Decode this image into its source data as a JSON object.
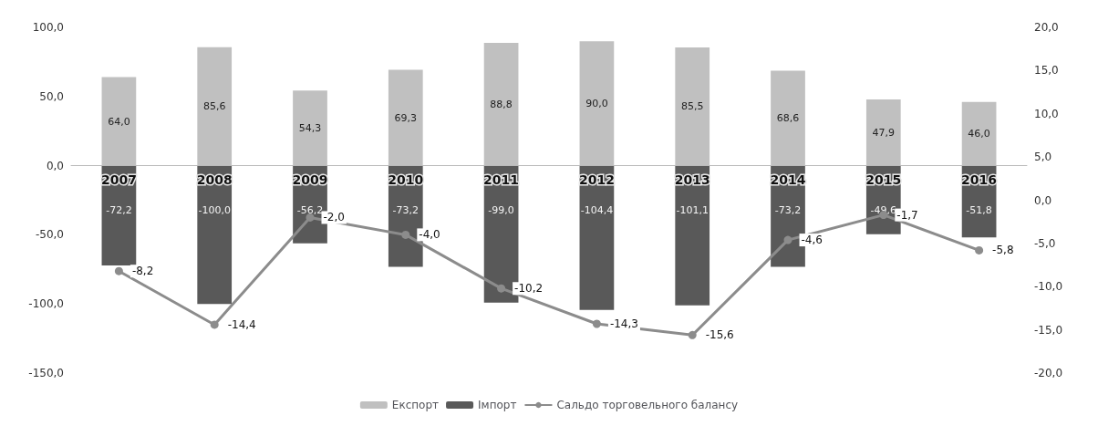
{
  "chart_data": {
    "type": "bar",
    "stacked": true,
    "categories": [
      "2007",
      "2008",
      "2009",
      "2010",
      "2011",
      "2012",
      "2013",
      "2014",
      "2015",
      "2016"
    ],
    "series": [
      {
        "name": "Експорт",
        "type": "bar",
        "color": "#c0c0c0",
        "values": [
          64.0,
          85.6,
          54.3,
          69.3,
          88.8,
          90.0,
          85.5,
          68.6,
          47.9,
          46.0
        ],
        "value_labels": [
          "64,0",
          "85,6",
          "54,3",
          "69,3",
          "88,8",
          "90,0",
          "85,5",
          "68,6",
          "47,9",
          "46,0"
        ]
      },
      {
        "name": "Імпорт",
        "type": "bar",
        "color": "#595959",
        "values": [
          -72.2,
          -100.0,
          -56.2,
          -73.2,
          -99.0,
          -104.4,
          -101.1,
          -73.2,
          -49.6,
          -51.8
        ],
        "value_labels": [
          "-72,2",
          "-100,0",
          "-56,2",
          "-73,2",
          "-99,0",
          "-104,4",
          "-101,1",
          "-73,2",
          "-49,6",
          "-51,8"
        ]
      },
      {
        "name": "Сальдо торговельного балансу",
        "type": "line",
        "axis": "y2",
        "color": "#8c8c8c",
        "values": [
          -8.2,
          -14.4,
          -2.0,
          -4.0,
          -10.2,
          -14.3,
          -15.6,
          -4.6,
          -1.7,
          -5.8
        ],
        "value_labels": [
          "-8,2",
          "-14,4",
          "-2,0",
          "-4,0",
          "-10,2",
          "-14,3",
          "-15,6",
          "-4,6",
          "-1,7",
          "-5,8"
        ]
      }
    ],
    "ylim": [
      -150,
      100
    ],
    "yticks": [
      {
        "value": -150,
        "label": "-150,0"
      },
      {
        "value": -100,
        "label": "-100,0"
      },
      {
        "value": -50,
        "label": "-50,0"
      },
      {
        "value": 0,
        "label": "0,0"
      },
      {
        "value": 50,
        "label": "50,0"
      },
      {
        "value": 100,
        "label": "100,0"
      }
    ],
    "y2lim": [
      -20,
      20
    ],
    "y2ticks": [
      {
        "value": -20,
        "label": "-20,0"
      },
      {
        "value": -15,
        "label": "-15,0"
      },
      {
        "value": -10,
        "label": "-10,0"
      },
      {
        "value": -5,
        "label": "-5,0"
      },
      {
        "value": 0,
        "label": "0,0"
      },
      {
        "value": 5,
        "label": "5,0"
      },
      {
        "value": 10,
        "label": "10,0"
      },
      {
        "value": 15,
        "label": "15,0"
      },
      {
        "value": 20,
        "label": "20,0"
      }
    ],
    "grid": false,
    "legend": "bottom",
    "marker": "circle",
    "line_style": "solid"
  }
}
